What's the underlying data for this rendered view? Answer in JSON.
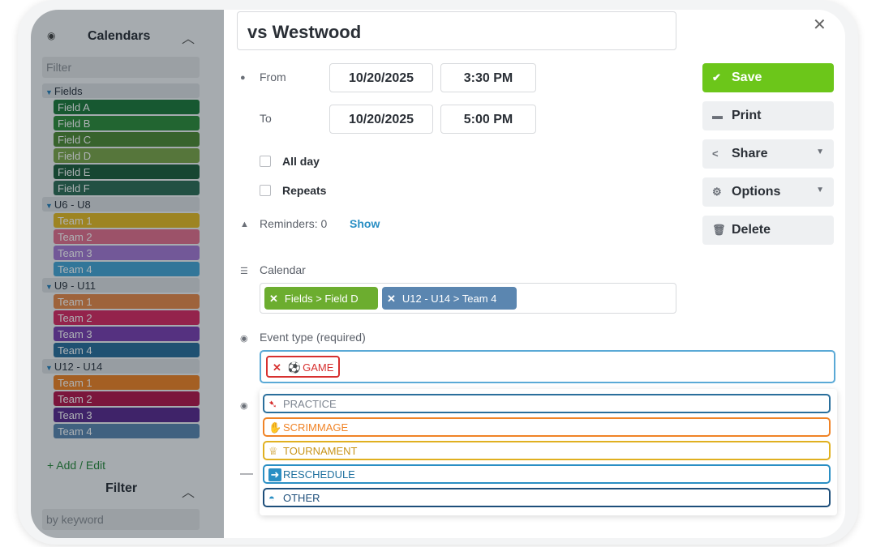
{
  "sidebar": {
    "calendars_title": "Calendars",
    "filter_placeholder": "Filter",
    "groups": [
      {
        "label": "Fields",
        "items": [
          {
            "label": "Field A",
            "color": "#1f7a3b"
          },
          {
            "label": "Field B",
            "color": "#2f8c3b"
          },
          {
            "label": "Field C",
            "color": "#4f8a35"
          },
          {
            "label": "Field D",
            "color": "#7da649"
          },
          {
            "label": "Field E",
            "color": "#1e5e3c"
          },
          {
            "label": "Field F",
            "color": "#2f6e55"
          }
        ]
      },
      {
        "label": "U6 - U8",
        "items": [
          {
            "label": "Team 1",
            "color": "#e6bb24"
          },
          {
            "label": "Team 2",
            "color": "#e4708e"
          },
          {
            "label": "Team 3",
            "color": "#a679d4"
          },
          {
            "label": "Team 4",
            "color": "#46a6d5"
          }
        ]
      },
      {
        "label": "U9 - U11",
        "items": [
          {
            "label": "Team 1",
            "color": "#e8894a"
          },
          {
            "label": "Team 2",
            "color": "#d92b63"
          },
          {
            "label": "Team 3",
            "color": "#7b3fb0"
          },
          {
            "label": "Team 4",
            "color": "#2a6f9c"
          }
        ]
      },
      {
        "label": "U12 - U14",
        "items": [
          {
            "label": "Team 1",
            "color": "#f08326"
          },
          {
            "label": "Team 2",
            "color": "#b3174b"
          },
          {
            "label": "Team 3",
            "color": "#5a2a8e"
          },
          {
            "label": "Team 4",
            "color": "#5b86b0"
          }
        ]
      }
    ],
    "add_edit": "+ Add / Edit",
    "filter_title": "Filter",
    "keyword_placeholder": "by keyword"
  },
  "event": {
    "title": "vs Westwood",
    "from_label": "From",
    "to_label": "To",
    "from_date": "10/20/2025",
    "from_time": "3:30 PM",
    "to_date": "10/20/2025",
    "to_time": "5:00 PM",
    "all_day_label": "All day",
    "repeats_label": "Repeats",
    "reminders_label": "Reminders: 0",
    "reminders_show": "Show",
    "calendar_label": "Calendar",
    "calendar_tags": [
      {
        "label": "Fields > Field D",
        "color": "#6cad2f"
      },
      {
        "label": "U12 - U14 > Team 4",
        "color": "#5b86b0"
      }
    ],
    "event_type_label": "Event type (required)",
    "selected_type": "GAME",
    "type_options": [
      {
        "label": "PRACTICE",
        "color": "#2a6f9c",
        "icon": "cleat-icon"
      },
      {
        "label": "SCRIMMAGE",
        "color": "#f08326",
        "icon": "hand-icon"
      },
      {
        "label": "TOURNAMENT",
        "color": "#e0b020",
        "icon": "trophy-icon"
      },
      {
        "label": "RESCHEDULE",
        "color": "#2a8fc4",
        "icon": "arrow-icon"
      },
      {
        "label": "OTHER",
        "color": "#1d4e7a",
        "icon": "cap-icon"
      }
    ]
  },
  "actions": {
    "save": "Save",
    "print": "Print",
    "share": "Share",
    "options": "Options",
    "delete": "Delete"
  }
}
